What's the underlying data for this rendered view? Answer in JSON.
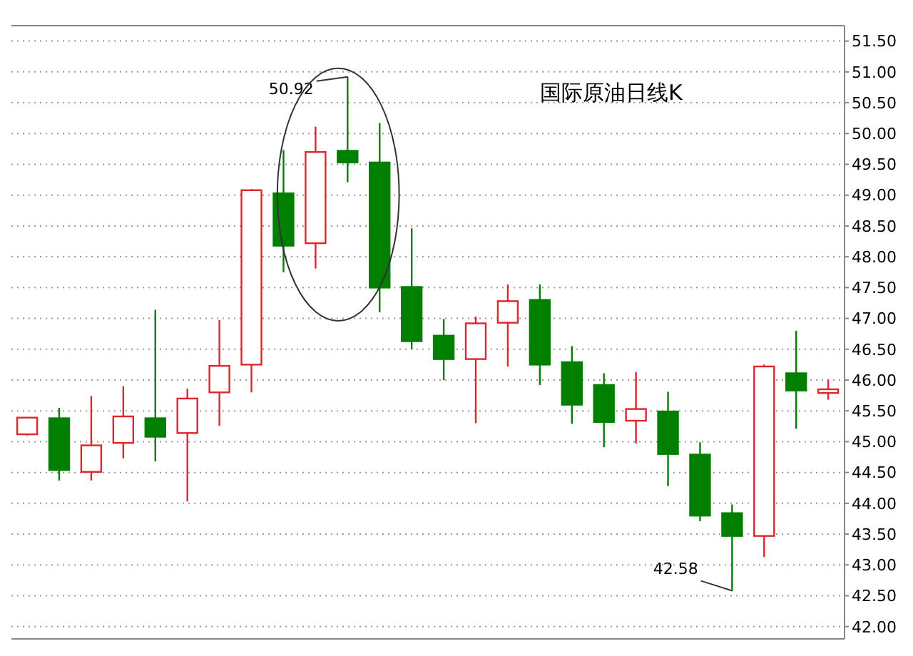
{
  "chart_data": {
    "type": "candlestick",
    "title": "国际原油日线K",
    "categories": [
      null,
      null,
      null,
      null,
      null,
      null,
      null,
      null,
      null,
      null,
      null,
      null,
      null,
      null,
      null,
      null,
      null,
      null,
      null,
      null,
      null,
      null,
      null,
      null,
      null,
      null
    ],
    "ohlc": [
      [
        45.12,
        45.4,
        45.1,
        45.39
      ],
      [
        45.38,
        45.55,
        44.37,
        44.54
      ],
      [
        44.51,
        45.74,
        44.37,
        44.94
      ],
      [
        44.98,
        45.9,
        44.73,
        45.41
      ],
      [
        45.38,
        47.14,
        44.68,
        45.08
      ],
      [
        45.14,
        45.86,
        44.03,
        45.7
      ],
      [
        45.8,
        46.97,
        45.26,
        46.23
      ],
      [
        46.25,
        49.1,
        45.8,
        49.08
      ],
      [
        49.03,
        49.73,
        47.75,
        48.18
      ],
      [
        48.22,
        50.11,
        47.81,
        49.7
      ],
      [
        49.72,
        50.92,
        49.21,
        49.53
      ],
      [
        49.53,
        50.17,
        47.1,
        47.5
      ],
      [
        47.51,
        48.46,
        46.5,
        46.63
      ],
      [
        46.72,
        46.99,
        46.0,
        46.34
      ],
      [
        46.34,
        47.03,
        45.3,
        46.92
      ],
      [
        46.93,
        47.55,
        46.22,
        47.28
      ],
      [
        47.3,
        47.55,
        45.92,
        46.25
      ],
      [
        46.29,
        46.55,
        45.29,
        45.6
      ],
      [
        45.92,
        46.11,
        44.91,
        45.32
      ],
      [
        45.34,
        46.13,
        44.97,
        45.53
      ],
      [
        45.49,
        45.81,
        44.28,
        44.8
      ],
      [
        44.79,
        44.99,
        43.71,
        43.8
      ],
      [
        43.84,
        43.98,
        42.58,
        43.47
      ],
      [
        43.47,
        46.25,
        43.13,
        46.22
      ],
      [
        46.11,
        46.8,
        45.21,
        45.83
      ],
      [
        45.79,
        46.01,
        45.68,
        45.85
      ]
    ],
    "colors": [
      "#e0242a",
      "#007f00",
      "#e0242a",
      "#e0242a",
      "#007f00",
      "#e0242a",
      "#e0242a",
      "#e0242a",
      "#007f00",
      "#e0242a",
      "#007f00",
      "#007f00",
      "#007f00",
      "#007f00",
      "#e0242a",
      "#e0242a",
      "#007f00",
      "#007f00",
      "#007f00",
      "#e0242a",
      "#007f00",
      "#007f00",
      "#007f00",
      "#e0242a",
      "#007f00",
      "#e0242a"
    ],
    "ylim": [
      41.8,
      51.75
    ],
    "yticks": [
      {
        "value": 42,
        "label": "42.00"
      },
      {
        "value": 42.5,
        "label": "42.50"
      },
      {
        "value": 43,
        "label": "43.00"
      },
      {
        "value": 43.5,
        "label": "43.50"
      },
      {
        "value": 44,
        "label": "44.00"
      },
      {
        "value": 44.5,
        "label": "44.50"
      },
      {
        "value": 45,
        "label": "45.00"
      },
      {
        "value": 45.5,
        "label": "45.50"
      },
      {
        "value": 46,
        "label": "46.00"
      },
      {
        "value": 46.5,
        "label": "46.50"
      },
      {
        "value": 47,
        "label": "47.00"
      },
      {
        "value": 47.5,
        "label": "47.50"
      },
      {
        "value": 48,
        "label": "48.00"
      },
      {
        "value": 48.5,
        "label": "48.50"
      },
      {
        "value": 49,
        "label": "49.00"
      },
      {
        "value": 49.5,
        "label": "49.50"
      },
      {
        "value": 50,
        "label": "50.00"
      },
      {
        "value": 50.5,
        "label": "50.50"
      },
      {
        "value": 51,
        "label": "51.00"
      },
      {
        "value": 51.5,
        "label": "51.50"
      }
    ],
    "grid": "y",
    "tick_labels": "y",
    "annotations": [
      "50.92",
      "42.58"
    ]
  }
}
